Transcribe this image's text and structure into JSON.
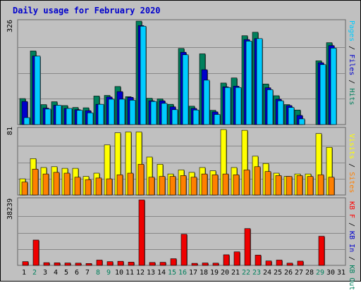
{
  "title": "Daily usage for February 2020",
  "chart_data": [
    {
      "type": "bar",
      "ymax_label": "326",
      "ylim": [
        0,
        326
      ],
      "side_label": [
        {
          "text": "Pages",
          "color": "#00ccff"
        },
        {
          "text": " / ",
          "color": "#000000"
        },
        {
          "text": "Files",
          "color": "#0000cc"
        },
        {
          "text": " / ",
          "color": "#000000"
        },
        {
          "text": "Hits",
          "color": "#00805c"
        }
      ],
      "categories": [
        "1",
        "2",
        "3",
        "4",
        "5",
        "6",
        "7",
        "8",
        "9",
        "10",
        "11",
        "12",
        "13",
        "14",
        "15",
        "16",
        "17",
        "18",
        "19",
        "20",
        "21",
        "22",
        "23",
        "24",
        "25",
        "26",
        "27",
        "28",
        "29",
        "30",
        "31"
      ],
      "series": [
        {
          "name": "Hits",
          "color": "#00805c",
          "values": [
            82,
            232,
            63,
            72,
            60,
            54,
            53,
            90,
            92,
            120,
            88,
            326,
            83,
            81,
            64,
            240,
            58,
            223,
            45,
            131,
            147,
            280,
            291,
            128,
            91,
            63,
            46,
            0,
            201,
            258,
            0
          ]
        },
        {
          "name": "Files",
          "color": "#0000cc",
          "values": [
            73,
            216,
            52,
            61,
            51,
            47,
            44,
            64,
            87,
            104,
            86,
            312,
            75,
            75,
            56,
            228,
            51,
            173,
            40,
            119,
            121,
            268,
            271,
            116,
            80,
            60,
            29,
            0,
            195,
            249,
            0
          ]
        },
        {
          "name": "Pages",
          "color": "#00ccff",
          "values": [
            22,
            216,
            49,
            61,
            51,
            45,
            37,
            64,
            80,
            80,
            77,
            310,
            73,
            67,
            47,
            220,
            46,
            140,
            32,
            117,
            117,
            263,
            271,
            110,
            75,
            54,
            18,
            0,
            189,
            241,
            0
          ]
        }
      ]
    },
    {
      "type": "bar",
      "ymax_label": "81",
      "ylim": [
        0,
        81
      ],
      "side_label": [
        {
          "text": "Visits",
          "color": "#ffff00"
        },
        {
          "text": " / ",
          "color": "#000000"
        },
        {
          "text": "Sites",
          "color": "#ff8000"
        }
      ],
      "categories": [
        "1",
        "2",
        "3",
        "4",
        "5",
        "6",
        "7",
        "8",
        "9",
        "10",
        "11",
        "12",
        "13",
        "14",
        "15",
        "16",
        "17",
        "18",
        "19",
        "20",
        "21",
        "22",
        "23",
        "24",
        "25",
        "26",
        "27",
        "28",
        "29",
        "30",
        "31"
      ],
      "series": [
        {
          "name": "Visits",
          "color": "#ffff00",
          "values": [
            20,
            45,
            34,
            35,
            33,
            33,
            23,
            27,
            62,
            77,
            78,
            78,
            47,
            38,
            26,
            31,
            28,
            34,
            30,
            81,
            34,
            80,
            48,
            39,
            27,
            23,
            26,
            26,
            76,
            59,
            0
          ]
        },
        {
          "name": "Sites",
          "color": "#ff8000",
          "values": [
            16,
            32,
            26,
            28,
            27,
            22,
            19,
            21,
            20,
            25,
            27,
            38,
            22,
            23,
            23,
            24,
            22,
            26,
            25,
            26,
            25,
            31,
            35,
            29,
            24,
            23,
            24,
            23,
            25,
            22,
            0
          ]
        }
      ]
    },
    {
      "type": "bar",
      "ymax_label": "38239",
      "ylim": [
        0,
        38239
      ],
      "side_label": [
        {
          "text": "KB F",
          "color": "#ff0000"
        },
        {
          "text": " / ",
          "color": "#000000"
        },
        {
          "text": "KB In",
          "color": "#0000cc"
        },
        {
          "text": " / ",
          "color": "#000000"
        },
        {
          "text": "KB Out",
          "color": "#00805c"
        }
      ],
      "categories": [
        "1",
        "2",
        "3",
        "4",
        "5",
        "6",
        "7",
        "8",
        "9",
        "10",
        "11",
        "12",
        "13",
        "14",
        "15",
        "16",
        "17",
        "18",
        "19",
        "20",
        "21",
        "22",
        "23",
        "24",
        "25",
        "26",
        "27",
        "28",
        "29",
        "30",
        "31"
      ],
      "series": [
        {
          "name": "KB F",
          "color": "#ee0000",
          "values": [
            2200,
            14800,
            1600,
            1500,
            1400,
            1300,
            1100,
            3100,
            2200,
            2400,
            1900,
            38239,
            1700,
            1800,
            3900,
            18200,
            1200,
            1400,
            1300,
            6200,
            7900,
            21500,
            6000,
            2600,
            3100,
            1300,
            2500,
            0,
            17000,
            0,
            0
          ]
        }
      ]
    }
  ],
  "days": [
    {
      "label": "1",
      "weekend": false
    },
    {
      "label": "2",
      "weekend": true
    },
    {
      "label": "3",
      "weekend": false
    },
    {
      "label": "4",
      "weekend": false
    },
    {
      "label": "5",
      "weekend": false
    },
    {
      "label": "6",
      "weekend": false
    },
    {
      "label": "7",
      "weekend": false
    },
    {
      "label": "8",
      "weekend": true
    },
    {
      "label": "9",
      "weekend": true
    },
    {
      "label": "10",
      "weekend": false
    },
    {
      "label": "11",
      "weekend": false
    },
    {
      "label": "12",
      "weekend": false
    },
    {
      "label": "13",
      "weekend": false
    },
    {
      "label": "14",
      "weekend": false
    },
    {
      "label": "15",
      "weekend": true
    },
    {
      "label": "16",
      "weekend": true
    },
    {
      "label": "17",
      "weekend": false
    },
    {
      "label": "18",
      "weekend": false
    },
    {
      "label": "19",
      "weekend": false
    },
    {
      "label": "20",
      "weekend": false
    },
    {
      "label": "21",
      "weekend": false
    },
    {
      "label": "22",
      "weekend": true
    },
    {
      "label": "23",
      "weekend": true
    },
    {
      "label": "24",
      "weekend": false
    },
    {
      "label": "25",
      "weekend": false
    },
    {
      "label": "26",
      "weekend": false
    },
    {
      "label": "27",
      "weekend": false
    },
    {
      "label": "28",
      "weekend": false
    },
    {
      "label": "29",
      "weekend": true
    },
    {
      "label": "30",
      "weekend": false
    },
    {
      "label": "31",
      "weekend": false
    }
  ]
}
